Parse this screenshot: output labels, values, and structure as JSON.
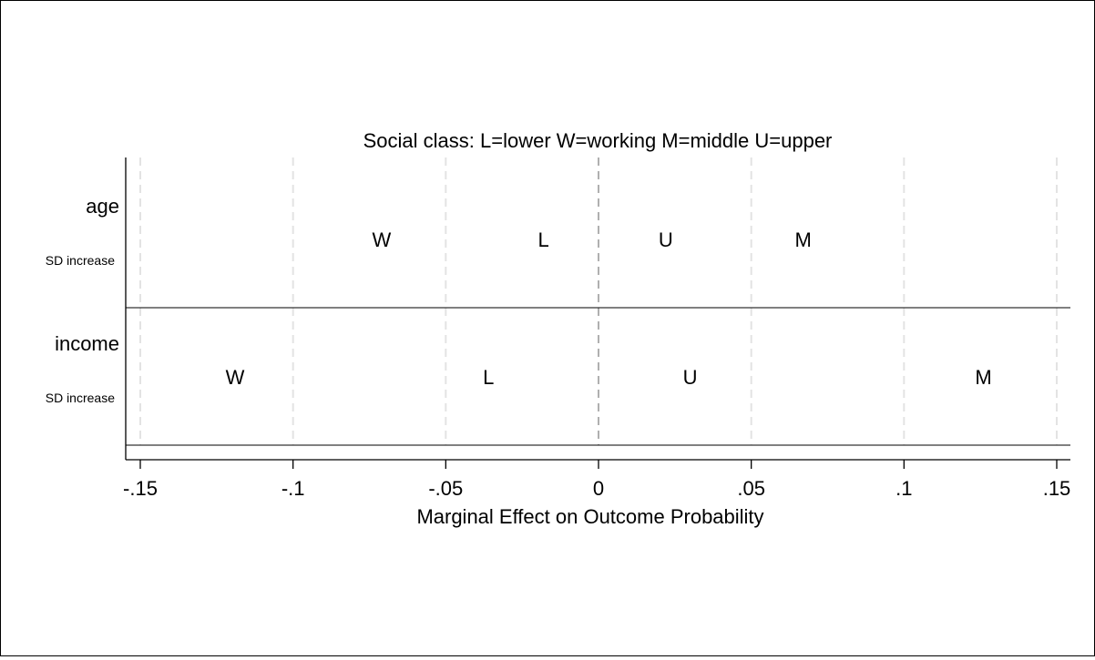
{
  "chart_data": {
    "type": "scatter",
    "subtype": "mlogit-odds-chart",
    "title": "Social class: L=lower W=working M=middle U=upper",
    "xlabel": "Marginal Effect on Outcome Probability",
    "xlim": [
      -0.155,
      0.155
    ],
    "xticks": [
      {
        "value": -0.15,
        "label": "-.15"
      },
      {
        "value": -0.1,
        "label": "-.1"
      },
      {
        "value": -0.05,
        "label": "-.05"
      },
      {
        "value": 0,
        "label": "0"
      },
      {
        "value": 0.05,
        "label": ".05"
      },
      {
        "value": 0.1,
        "label": ".1"
      },
      {
        "value": 0.15,
        "label": ".15"
      }
    ],
    "grid": "vertical dashed",
    "variables": [
      {
        "name": "age",
        "sublabel": "SD increase",
        "points": [
          {
            "label": "W",
            "x": -0.071
          },
          {
            "label": "L",
            "x": -0.018
          },
          {
            "label": "U",
            "x": 0.022
          },
          {
            "label": "M",
            "x": 0.067
          }
        ]
      },
      {
        "name": "income",
        "sublabel": "SD increase",
        "points": [
          {
            "label": "W",
            "x": -0.119
          },
          {
            "label": "L",
            "x": -0.036
          },
          {
            "label": "U",
            "x": 0.03
          },
          {
            "label": "M",
            "x": 0.126
          }
        ]
      }
    ]
  }
}
